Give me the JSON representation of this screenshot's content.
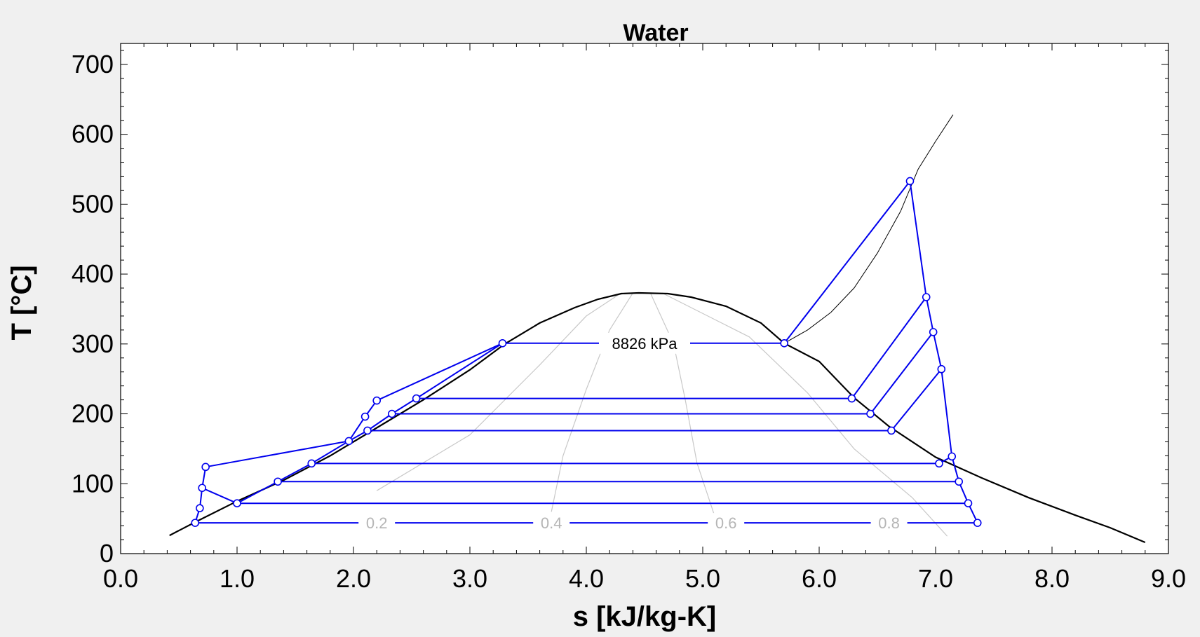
{
  "chart_data": {
    "type": "line",
    "title": "Water",
    "xlabel": "s [kJ/kg-K]",
    "ylabel": "T [°C]",
    "xlim": [
      0,
      9
    ],
    "ylim": [
      0,
      730
    ],
    "x_ticks": [
      "0.0",
      "1.0",
      "2.0",
      "3.0",
      "4.0",
      "5.0",
      "6.0",
      "7.0",
      "8.0",
      "9.0"
    ],
    "y_ticks": [
      "0",
      "100",
      "200",
      "300",
      "400",
      "500",
      "600",
      "700"
    ],
    "colors": {
      "dome": "#000000",
      "isobar": "#000000",
      "quality": "#c8c8c8",
      "cycle": "#0000ee",
      "marker_fill": "#ffffff"
    },
    "saturation_dome": [
      [
        0.42,
        26
      ],
      [
        0.64,
        45
      ],
      [
        1.0,
        75
      ],
      [
        1.4,
        105
      ],
      [
        1.8,
        140
      ],
      [
        2.2,
        180
      ],
      [
        2.6,
        220
      ],
      [
        3.0,
        263
      ],
      [
        3.3,
        300
      ],
      [
        3.6,
        330
      ],
      [
        3.9,
        352
      ],
      [
        4.1,
        364
      ],
      [
        4.3,
        372
      ],
      [
        4.45,
        373
      ],
      [
        4.7,
        372
      ],
      [
        4.9,
        367
      ],
      [
        5.2,
        354
      ],
      [
        5.5,
        330
      ],
      [
        5.7,
        301
      ],
      [
        6.0,
        275
      ],
      [
        6.3,
        223
      ],
      [
        6.6,
        182
      ],
      [
        7.0,
        138
      ],
      [
        7.4,
        108
      ],
      [
        7.8,
        80
      ],
      [
        8.2,
        55
      ],
      [
        8.5,
        37
      ],
      [
        8.8,
        16
      ]
    ],
    "isobar": {
      "label": "8826 kPa",
      "points": [
        [
          5.7,
          301
        ],
        [
          5.9,
          320
        ],
        [
          6.1,
          345
        ],
        [
          6.3,
          380
        ],
        [
          6.5,
          430
        ],
        [
          6.7,
          490
        ],
        [
          6.85,
          550
        ],
        [
          7.0,
          590
        ],
        [
          7.15,
          628
        ]
      ]
    },
    "quality_lines": [
      {
        "label": "0.2",
        "points": [
          [
            2.2,
            90
          ],
          [
            3.0,
            170
          ],
          [
            3.6,
            270
          ],
          [
            4.0,
            340
          ],
          [
            4.3,
            373
          ]
        ]
      },
      {
        "label": "0.4",
        "points": [
          [
            3.7,
            60
          ],
          [
            3.8,
            140
          ],
          [
            4.0,
            235
          ],
          [
            4.2,
            320
          ],
          [
            4.4,
            373
          ]
        ]
      },
      {
        "label": "0.6",
        "points": [
          [
            5.1,
            55
          ],
          [
            4.95,
            130
          ],
          [
            4.85,
            220
          ],
          [
            4.75,
            300
          ],
          [
            4.55,
            373
          ]
        ]
      },
      {
        "label": "0.8",
        "points": [
          [
            7.1,
            25
          ],
          [
            6.8,
            80
          ],
          [
            6.3,
            150
          ],
          [
            5.9,
            230
          ],
          [
            5.4,
            310
          ],
          [
            4.65,
            373
          ]
        ]
      }
    ],
    "cycle_segments": [
      [
        [
          0.64,
          44
        ],
        [
          7.36,
          44
        ]
      ],
      [
        [
          1.0,
          72
        ],
        [
          7.28,
          72
        ]
      ],
      [
        [
          1.35,
          103
        ],
        [
          7.2,
          103
        ]
      ],
      [
        [
          1.64,
          129
        ],
        [
          7.03,
          129
        ]
      ],
      [
        [
          2.12,
          176
        ],
        [
          6.62,
          176
        ]
      ],
      [
        [
          2.33,
          200
        ],
        [
          6.44,
          200
        ]
      ],
      [
        [
          2.54,
          222
        ],
        [
          6.28,
          222
        ]
      ],
      [
        [
          3.28,
          301
        ],
        [
          5.7,
          301
        ]
      ],
      [
        [
          5.7,
          301
        ],
        [
          6.78,
          533
        ]
      ],
      [
        [
          6.28,
          222
        ],
        [
          6.92,
          367
        ]
      ],
      [
        [
          6.44,
          200
        ],
        [
          6.98,
          317
        ]
      ],
      [
        [
          6.62,
          176
        ],
        [
          7.05,
          264
        ]
      ],
      [
        [
          6.78,
          533
        ],
        [
          6.92,
          367
        ],
        [
          6.98,
          317
        ],
        [
          7.05,
          264
        ],
        [
          7.14,
          139
        ],
        [
          7.03,
          129
        ]
      ],
      [
        [
          7.14,
          139
        ],
        [
          7.2,
          103
        ],
        [
          7.28,
          72
        ],
        [
          7.36,
          44
        ]
      ],
      [
        [
          3.28,
          301
        ],
        [
          2.2,
          219
        ],
        [
          2.1,
          196
        ],
        [
          1.96,
          161
        ],
        [
          0.73,
          124
        ],
        [
          0.7,
          94
        ],
        [
          0.68,
          65
        ],
        [
          0.64,
          44
        ]
      ],
      [
        [
          0.7,
          94
        ],
        [
          1.0,
          72
        ]
      ],
      [
        [
          1.0,
          72
        ],
        [
          1.35,
          103
        ],
        [
          1.64,
          129
        ],
        [
          1.96,
          161
        ],
        [
          2.12,
          176
        ],
        [
          2.33,
          200
        ],
        [
          2.54,
          222
        ],
        [
          3.28,
          301
        ]
      ]
    ],
    "cycle_points": [
      [
        0.64,
        44
      ],
      [
        0.68,
        65
      ],
      [
        0.7,
        94
      ],
      [
        0.73,
        124
      ],
      [
        1.0,
        72
      ],
      [
        1.35,
        103
      ],
      [
        1.64,
        129
      ],
      [
        1.96,
        161
      ],
      [
        2.1,
        196
      ],
      [
        2.12,
        176
      ],
      [
        2.2,
        219
      ],
      [
        2.33,
        200
      ],
      [
        2.54,
        222
      ],
      [
        3.28,
        301
      ],
      [
        5.7,
        301
      ],
      [
        6.28,
        222
      ],
      [
        6.44,
        200
      ],
      [
        6.62,
        176
      ],
      [
        6.78,
        533
      ],
      [
        6.92,
        367
      ],
      [
        6.98,
        317
      ],
      [
        7.03,
        129
      ],
      [
        7.05,
        264
      ],
      [
        7.14,
        139
      ],
      [
        7.2,
        103
      ],
      [
        7.28,
        72
      ],
      [
        7.36,
        44
      ]
    ]
  }
}
